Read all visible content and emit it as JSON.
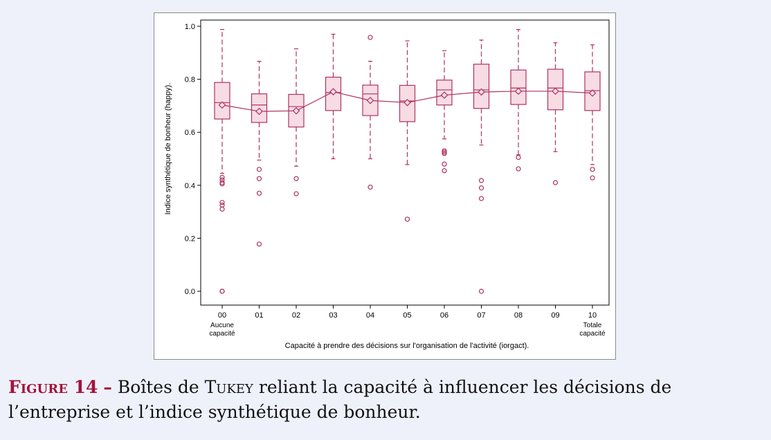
{
  "chart_data": {
    "type": "box",
    "ylabel": "Indice synthétique de bonheur (happy).",
    "xlabel": "Capacité à prendre des décisions sur l'organisation de l'activité (iorgact).",
    "ylim": [
      0.0,
      1.0
    ],
    "yticks": [
      "0.0",
      "0.2",
      "0.4",
      "0.6",
      "0.8",
      "1.0"
    ],
    "categories": [
      "00",
      "01",
      "02",
      "03",
      "04",
      "05",
      "06",
      "07",
      "08",
      "09",
      "10"
    ],
    "category_sublabels": {
      "00": [
        "Aucune",
        "capacité"
      ],
      "10": [
        "Totale",
        "capacité"
      ]
    },
    "grid": false,
    "color": "#b03060",
    "box_fill": "#f7dce4",
    "boxes": [
      {
        "cat": "00",
        "whisker_low": 0.445,
        "q1": 0.65,
        "median": 0.712,
        "q3": 0.788,
        "whisker_high": 0.988,
        "mean": 0.703,
        "outliers": [
          0.43,
          0.42,
          0.41,
          0.405,
          0.335,
          0.325,
          0.31,
          0.0,
          0.0
        ]
      },
      {
        "cat": "01",
        "whisker_low": 0.495,
        "q1": 0.637,
        "median": 0.703,
        "q3": 0.745,
        "whisker_high": 0.868,
        "mean": 0.679,
        "outliers": [
          0.46,
          0.425,
          0.37,
          0.178
        ]
      },
      {
        "cat": "02",
        "whisker_low": 0.472,
        "q1": 0.62,
        "median": 0.697,
        "q3": 0.743,
        "whisker_high": 0.915,
        "mean": 0.681,
        "outliers": [
          0.425,
          0.368
        ]
      },
      {
        "cat": "03",
        "whisker_low": 0.5,
        "q1": 0.682,
        "median": 0.75,
        "q3": 0.808,
        "whisker_high": 0.97,
        "mean": 0.753,
        "outliers": []
      },
      {
        "cat": "04",
        "whisker_low": 0.5,
        "q1": 0.663,
        "median": 0.745,
        "q3": 0.778,
        "whisker_high": 0.868,
        "mean": 0.72,
        "outliers": [
          0.958,
          0.393
        ]
      },
      {
        "cat": "05",
        "whisker_low": 0.478,
        "q1": 0.64,
        "median": 0.718,
        "q3": 0.777,
        "whisker_high": 0.945,
        "mean": 0.712,
        "outliers": [
          0.272
        ]
      },
      {
        "cat": "06",
        "whisker_low": 0.575,
        "q1": 0.703,
        "median": 0.76,
        "q3": 0.797,
        "whisker_high": 0.908,
        "mean": 0.74,
        "outliers": [
          0.53,
          0.525,
          0.52,
          0.48,
          0.455
        ]
      },
      {
        "cat": "07",
        "whisker_low": 0.552,
        "q1": 0.69,
        "median": 0.76,
        "q3": 0.857,
        "whisker_high": 0.948,
        "mean": 0.752,
        "outliers": [
          0.418,
          0.39,
          0.35,
          0.0
        ]
      },
      {
        "cat": "08",
        "whisker_low": 0.515,
        "q1": 0.705,
        "median": 0.767,
        "q3": 0.835,
        "whisker_high": 0.988,
        "mean": 0.755,
        "outliers": [
          0.505,
          0.462
        ]
      },
      {
        "cat": "09",
        "whisker_low": 0.527,
        "q1": 0.685,
        "median": 0.767,
        "q3": 0.838,
        "whisker_high": 0.938,
        "mean": 0.755,
        "outliers": [
          0.41
        ]
      },
      {
        "cat": "10",
        "whisker_low": 0.478,
        "q1": 0.682,
        "median": 0.757,
        "q3": 0.828,
        "whisker_high": 0.93,
        "mean": 0.748,
        "outliers": [
          0.46,
          0.428
        ]
      }
    ]
  },
  "caption": {
    "label": "Figure 14",
    "dash": "–",
    "text_before": "Boîtes de",
    "tukey": "Tukey",
    "text_after": "reliant la capacité à influencer les décisions de l’entreprise et l’indice synthétique de bonheur."
  }
}
